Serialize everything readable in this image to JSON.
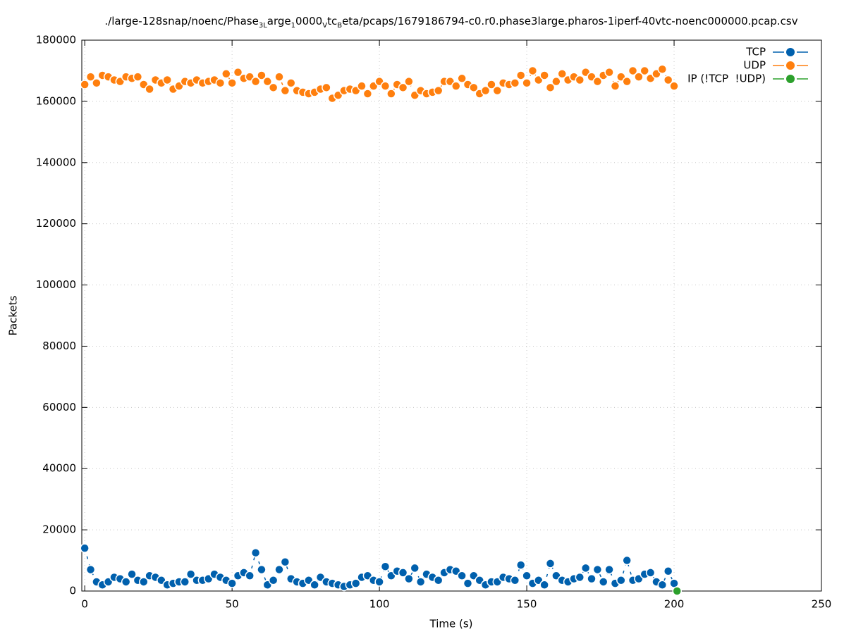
{
  "chart_data": {
    "type": "scatter",
    "title_segments": [
      {
        "text": "./large-128snap/noenc/Phase",
        "sub": false
      },
      {
        "text": "3L",
        "sub": true
      },
      {
        "text": "arge",
        "sub": false
      },
      {
        "text": "1",
        "sub": true
      },
      {
        "text": "0000",
        "sub": false
      },
      {
        "text": "V",
        "sub": true
      },
      {
        "text": "tc",
        "sub": false
      },
      {
        "text": "B",
        "sub": true
      },
      {
        "text": "eta/pcaps/1679186794-c0.r0.phase3large.pharos-1iperf-40vtc-noenc000000.pcap.csv",
        "sub": false
      }
    ],
    "x_label": "Time (s)",
    "y_label": "Packets",
    "xlim": [
      -1,
      250
    ],
    "ylim": [
      0,
      180000
    ],
    "xticks": [
      0,
      50,
      100,
      150,
      200,
      250
    ],
    "yticks": [
      0,
      20000,
      40000,
      60000,
      80000,
      100000,
      120000,
      140000,
      160000,
      180000
    ],
    "grid": true,
    "legend": "top-right",
    "series": [
      {
        "name": "TCP",
        "color": "#0060ad",
        "x": [
          0,
          2,
          4,
          6,
          8,
          10,
          12,
          14,
          16,
          18,
          20,
          22,
          24,
          26,
          28,
          30,
          32,
          34,
          36,
          38,
          40,
          42,
          44,
          46,
          48,
          50,
          52,
          54,
          56,
          58,
          60,
          62,
          64,
          66,
          68,
          70,
          72,
          74,
          76,
          78,
          80,
          82,
          84,
          86,
          88,
          90,
          92,
          94,
          96,
          98,
          100,
          102,
          104,
          106,
          108,
          110,
          112,
          114,
          116,
          118,
          120,
          122,
          124,
          126,
          128,
          130,
          132,
          134,
          136,
          138,
          140,
          142,
          144,
          146,
          148,
          150,
          152,
          154,
          156,
          158,
          160,
          162,
          164,
          166,
          168,
          170,
          172,
          174,
          176,
          178,
          180,
          182,
          184,
          186,
          188,
          190,
          192,
          194,
          196,
          198,
          200
        ],
        "values": [
          14000,
          7000,
          3000,
          2000,
          3000,
          4500,
          4000,
          3000,
          5500,
          3500,
          3000,
          5000,
          4500,
          3500,
          2000,
          2500,
          3000,
          3000,
          5500,
          3500,
          3500,
          4000,
          5500,
          4500,
          3500,
          2500,
          5000,
          6000,
          5000,
          12500,
          7000,
          2000,
          3500,
          7000,
          9500,
          4000,
          3000,
          2500,
          3500,
          2000,
          4500,
          3000,
          2500,
          2000,
          1500,
          2000,
          2500,
          4500,
          5000,
          3500,
          3000,
          8000,
          5000,
          6500,
          6000,
          4000,
          7500,
          3000,
          5500,
          4500,
          3500,
          6000,
          7000,
          6500,
          5000,
          2500,
          5000,
          3500,
          2000,
          3000,
          3000,
          4500,
          4000,
          3500,
          8500,
          5000,
          2500,
          3500,
          2000,
          9000,
          5000,
          3500,
          3000,
          4000,
          4500,
          7500,
          4000,
          7000,
          3000,
          7000,
          2500,
          3500,
          10000,
          3500,
          4000,
          5500,
          6000,
          3000,
          2000,
          6500,
          2500
        ]
      },
      {
        "name": "UDP",
        "color": "#ff7f0e",
        "x": [
          0,
          2,
          4,
          6,
          8,
          10,
          12,
          14,
          16,
          18,
          20,
          22,
          24,
          26,
          28,
          30,
          32,
          34,
          36,
          38,
          40,
          42,
          44,
          46,
          48,
          50,
          52,
          54,
          56,
          58,
          60,
          62,
          64,
          66,
          68,
          70,
          72,
          74,
          76,
          78,
          80,
          82,
          84,
          86,
          88,
          90,
          92,
          94,
          96,
          98,
          100,
          102,
          104,
          106,
          108,
          110,
          112,
          114,
          116,
          118,
          120,
          122,
          124,
          126,
          128,
          130,
          132,
          134,
          136,
          138,
          140,
          142,
          144,
          146,
          148,
          150,
          152,
          154,
          156,
          158,
          160,
          162,
          164,
          166,
          168,
          170,
          172,
          174,
          176,
          178,
          180,
          182,
          184,
          186,
          188,
          190,
          192,
          194,
          196,
          198,
          200
        ],
        "values": [
          165500,
          168000,
          166000,
          168500,
          168000,
          167000,
          166500,
          168000,
          167500,
          168000,
          165500,
          164000,
          167000,
          166000,
          167000,
          164000,
          165000,
          166500,
          166000,
          167000,
          166000,
          166500,
          167000,
          166000,
          169000,
          166000,
          169500,
          167500,
          168000,
          166500,
          168500,
          166500,
          164500,
          168000,
          163500,
          166000,
          163500,
          163000,
          162500,
          163000,
          164000,
          164500,
          161000,
          162000,
          163500,
          164000,
          163500,
          165000,
          162500,
          165000,
          166500,
          165000,
          162500,
          165500,
          164500,
          166500,
          162000,
          163500,
          162500,
          163000,
          163500,
          166500,
          166500,
          165000,
          167500,
          165500,
          164500,
          162500,
          163500,
          165500,
          163500,
          166000,
          165500,
          166000,
          168500,
          166000,
          170000,
          167000,
          168500,
          164500,
          166500,
          169000,
          167000,
          168000,
          167000,
          169500,
          168000,
          166500,
          168500,
          169500,
          165000,
          168000,
          166500,
          170000,
          168000,
          170000,
          167500,
          169000,
          170500,
          167000,
          165000
        ]
      },
      {
        "name": "IP (!TCP  !UDP)",
        "color": "#2ca02c",
        "x": [
          201
        ],
        "values": [
          0
        ]
      }
    ]
  }
}
